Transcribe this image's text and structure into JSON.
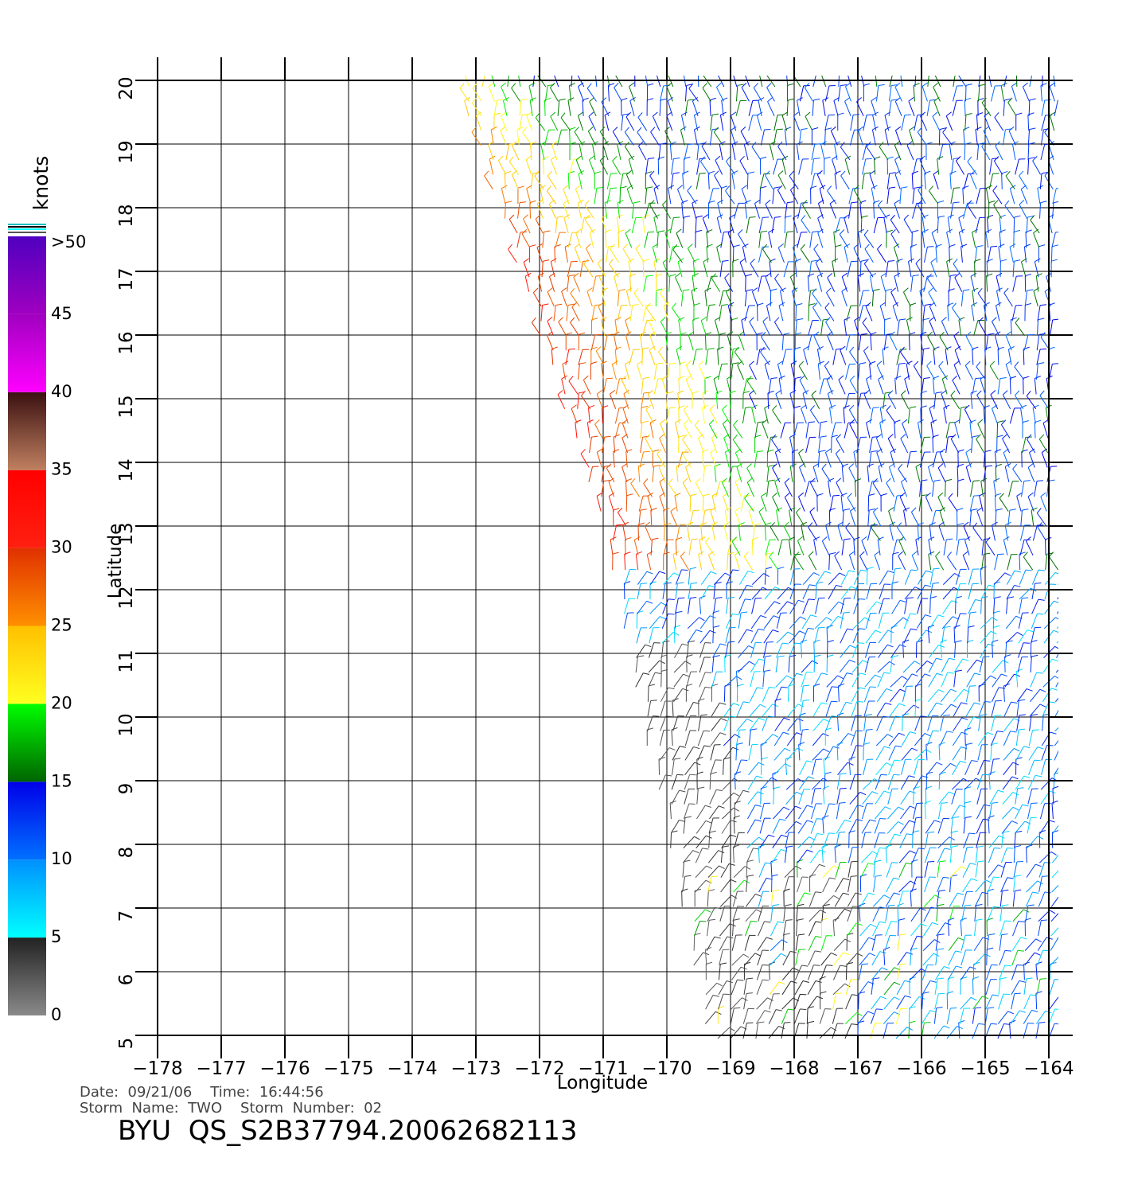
{
  "chart_data": {
    "type": "barb",
    "x_label": "Longitude",
    "y_label": "Latitude",
    "xlim": [
      -178,
      -164
    ],
    "ylim": [
      5,
      20
    ],
    "xticks": [
      {
        "value": -178,
        "label": "−178"
      },
      {
        "value": -177,
        "label": "−177"
      },
      {
        "value": -176,
        "label": "−176"
      },
      {
        "value": -175,
        "label": "−175"
      },
      {
        "value": -174,
        "label": "−174"
      },
      {
        "value": -173,
        "label": "−173"
      },
      {
        "value": -172,
        "label": "−172"
      },
      {
        "value": -171,
        "label": "−171"
      },
      {
        "value": -170,
        "label": "−170"
      },
      {
        "value": -169,
        "label": "−169"
      },
      {
        "value": -168,
        "label": "−168"
      },
      {
        "value": -167,
        "label": "−167"
      },
      {
        "value": -166,
        "label": "−166"
      },
      {
        "value": -165,
        "label": "−165"
      },
      {
        "value": -164,
        "label": "−164"
      }
    ],
    "yticks": [
      5,
      6,
      7,
      8,
      9,
      10,
      11,
      12,
      13,
      14,
      15,
      16,
      17,
      18,
      19,
      20
    ],
    "grid": true,
    "colorbar": {
      "label": "knots",
      "lim": [
        0,
        50
      ],
      "ticks": [
        0,
        5,
        10,
        15,
        20,
        25,
        30,
        35,
        40,
        45,
        {
          "value": 50,
          "label": ">50"
        }
      ],
      "colors": [
        [
          "#8a8a8a",
          "#222222"
        ],
        [
          "#00ffff",
          "#0090ff"
        ],
        [
          "#0070ff",
          "#0000e8"
        ],
        [
          "#006400",
          "#00ff00"
        ],
        [
          "#ffff20",
          "#ffc000"
        ],
        [
          "#ff9000",
          "#e03000"
        ],
        [
          "#ff2010",
          "#ff0000"
        ],
        [
          "#c08060",
          "#3a1010"
        ],
        [
          "#ff00ff",
          "#a000c0"
        ],
        [
          "#a000c0",
          "#5000c0"
        ]
      ]
    },
    "footer": {
      "line1": "Date:  09/21/06    Time:  16:44:56",
      "line2": "Storm  Name:  TWO    Storm  Number:  02",
      "title": "BYU  QS_S2B37794.20062682113"
    }
  }
}
